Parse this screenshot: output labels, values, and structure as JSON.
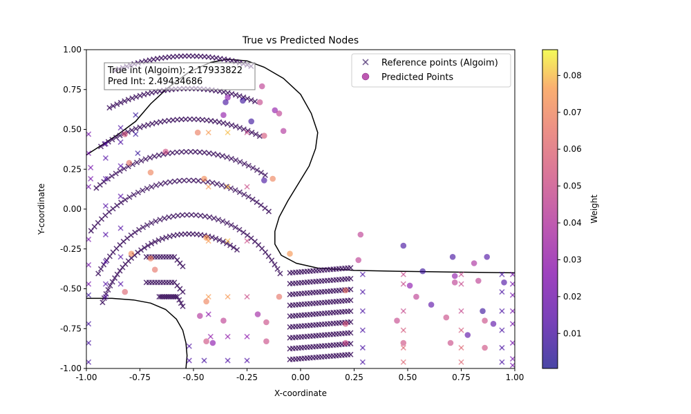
{
  "chart_data": {
    "type": "scatter",
    "title": "True vs Predicted Nodes",
    "xlabel": "X-coordinate",
    "ylabel": "Y-coordinate",
    "xlim": [
      -1.0,
      1.0
    ],
    "ylim": [
      -1.0,
      1.0
    ],
    "x_ticks": [
      "-1.00",
      "-0.75",
      "-0.50",
      "-0.25",
      "0.00",
      "0.25",
      "0.50",
      "0.75",
      "1.00"
    ],
    "y_ticks": [
      "-1.00",
      "-0.75",
      "-0.50",
      "-0.25",
      "0.00",
      "0.25",
      "0.50",
      "0.75",
      "1.00"
    ],
    "grid": false,
    "legend_position": "top-right",
    "annotation": {
      "line1": "True int (Algoim): 2.17933822",
      "line2": "Pred Int: 2.49434686"
    },
    "colorbar": {
      "label": "Weight",
      "colormap": "plasma",
      "range": [
        0.0005,
        0.087
      ],
      "ticks": [
        "0.01",
        "0.02",
        "0.03",
        "0.04",
        "0.05",
        "0.06",
        "0.07",
        "0.08"
      ]
    },
    "series": [
      {
        "name": "Reference points (Algoim)",
        "marker": "x",
        "points": [
          [
            -0.99,
            0.47,
            0.022
          ],
          [
            -0.99,
            0.35,
            0.022
          ],
          [
            -0.99,
            0.14,
            0.022
          ],
          [
            -0.99,
            -0.19,
            0.022
          ],
          [
            -0.99,
            -0.35,
            0.022
          ],
          [
            -0.99,
            -0.47,
            0.022
          ],
          [
            -0.99,
            -0.54,
            0.008
          ],
          [
            -0.99,
            -0.72,
            0.01
          ],
          [
            -0.99,
            -0.84,
            0.01
          ],
          [
            -0.99,
            -0.96,
            0.01
          ],
          [
            -0.98,
            0.26,
            0.022
          ],
          [
            -0.98,
            0.19,
            0.022
          ],
          [
            -0.91,
            0.41,
            0.013
          ],
          [
            -0.91,
            0.32,
            0.013
          ],
          [
            -0.91,
            0.19,
            0.013
          ],
          [
            -0.91,
            0.02,
            0.013
          ],
          [
            -0.91,
            -0.16,
            0.013
          ],
          [
            -0.91,
            -0.33,
            0.013
          ],
          [
            -0.91,
            -0.47,
            0.013
          ],
          [
            -0.91,
            -0.55,
            0.013
          ],
          [
            -0.84,
            0.51,
            0.012
          ],
          [
            -0.84,
            0.42,
            0.012
          ],
          [
            -0.84,
            0.27,
            0.014
          ],
          [
            -0.84,
            0.08,
            0.014
          ],
          [
            -0.84,
            -0.12,
            0.013
          ],
          [
            -0.84,
            -0.3,
            0.013
          ],
          [
            -0.84,
            -0.47,
            0.013
          ],
          [
            -0.77,
            0.59,
            0.006
          ],
          [
            -0.77,
            0.47,
            0.006
          ],
          [
            -0.76,
            0.35,
            0.006
          ],
          [
            -0.52,
            -0.95,
            0.012
          ],
          [
            -0.52,
            -0.86,
            0.012
          ],
          [
            -0.45,
            -0.95,
            0.01
          ],
          [
            -0.42,
            -0.8,
            0.03
          ],
          [
            -0.43,
            -0.66,
            0.028
          ],
          [
            -0.34,
            -0.95,
            0.012
          ],
          [
            -0.34,
            -0.8,
            0.03
          ],
          [
            -0.34,
            -0.55,
            0.075
          ],
          [
            -0.34,
            -0.2,
            0.08
          ],
          [
            -0.34,
            0.14,
            0.08
          ],
          [
            -0.34,
            0.48,
            0.08
          ],
          [
            -0.43,
            0.48,
            0.076
          ],
          [
            -0.43,
            0.14,
            0.076
          ],
          [
            -0.43,
            -0.2,
            0.076
          ],
          [
            -0.43,
            -0.55,
            0.076
          ],
          [
            -0.25,
            -0.95,
            0.012
          ],
          [
            -0.25,
            -0.8,
            0.028
          ],
          [
            -0.25,
            -0.55,
            0.05
          ],
          [
            -0.25,
            -0.2,
            0.05
          ],
          [
            -0.25,
            0.14,
            0.05
          ],
          [
            -0.25,
            0.48,
            0.05
          ],
          [
            0.29,
            -0.52,
            0.011
          ],
          [
            0.29,
            -0.64,
            0.011
          ],
          [
            0.29,
            -0.76,
            0.011
          ],
          [
            0.29,
            -0.87,
            0.011
          ],
          [
            0.29,
            -0.96,
            0.011
          ],
          [
            0.29,
            -0.41,
            0.011
          ],
          [
            0.48,
            -0.47,
            0.048
          ],
          [
            0.48,
            -0.64,
            0.048
          ],
          [
            0.48,
            -0.76,
            0.055
          ],
          [
            0.48,
            -0.87,
            0.06
          ],
          [
            0.48,
            -0.96,
            0.06
          ],
          [
            0.48,
            -0.41,
            0.048
          ],
          [
            0.75,
            -0.47,
            0.048
          ],
          [
            0.75,
            -0.64,
            0.048
          ],
          [
            0.75,
            -0.76,
            0.055
          ],
          [
            0.75,
            -0.87,
            0.06
          ],
          [
            0.75,
            -0.96,
            0.06
          ],
          [
            0.75,
            -0.41,
            0.048
          ],
          [
            0.94,
            -0.41,
            0.011
          ],
          [
            0.94,
            -0.52,
            0.011
          ],
          [
            0.94,
            -0.64,
            0.011
          ],
          [
            0.94,
            -0.76,
            0.011
          ],
          [
            0.94,
            -0.87,
            0.011
          ],
          [
            0.94,
            -0.96,
            0.011
          ],
          [
            0.99,
            -0.41,
            0.022
          ],
          [
            0.99,
            -0.47,
            0.022
          ],
          [
            0.99,
            -0.54,
            0.022
          ],
          [
            0.99,
            -0.64,
            0.022
          ],
          [
            0.99,
            -0.72,
            0.022
          ],
          [
            0.99,
            -0.84,
            0.022
          ],
          [
            0.99,
            -0.94,
            0.022
          ],
          [
            0.99,
            -0.98,
            0.022
          ]
        ]
      },
      {
        "name": "Predicted Points",
        "marker": "o",
        "points": [
          [
            -0.82,
            0.47,
            0.055
          ],
          [
            -0.8,
            0.29,
            0.065
          ],
          [
            -0.7,
            0.23,
            0.07
          ],
          [
            -0.63,
            0.36,
            0.052
          ],
          [
            -0.79,
            -0.28,
            0.072
          ],
          [
            -0.7,
            -0.31,
            0.068
          ],
          [
            -0.68,
            -0.38,
            0.065
          ],
          [
            -0.82,
            -0.52,
            0.06
          ],
          [
            -0.48,
            0.48,
            0.068
          ],
          [
            -0.45,
            0.19,
            0.072
          ],
          [
            -0.44,
            -0.18,
            0.075
          ],
          [
            -0.44,
            -0.58,
            0.07
          ],
          [
            -0.47,
            -0.67,
            0.04
          ],
          [
            -0.44,
            -0.83,
            0.052
          ],
          [
            -0.41,
            -0.84,
            0.028
          ],
          [
            -0.36,
            -0.7,
            0.045
          ],
          [
            -0.36,
            0.59,
            0.03
          ],
          [
            -0.34,
            0.7,
            0.028
          ],
          [
            -0.35,
            0.67,
            0.01
          ],
          [
            -0.27,
            0.68,
            0.008
          ],
          [
            -0.23,
            0.55,
            0.008
          ],
          [
            -0.19,
            0.67,
            0.048
          ],
          [
            -0.17,
            0.46,
            0.055
          ],
          [
            -0.18,
            0.77,
            0.045
          ],
          [
            -0.2,
            -0.66,
            0.035
          ],
          [
            -0.16,
            -0.71,
            0.05
          ],
          [
            -0.16,
            -0.83,
            0.05
          ],
          [
            -0.13,
            0.19,
            0.07
          ],
          [
            -0.12,
            0.62,
            0.03
          ],
          [
            -0.1,
            0.6,
            0.045
          ],
          [
            -0.1,
            -0.55,
            0.065
          ],
          [
            -0.17,
            0.18,
            0.01
          ],
          [
            -0.08,
            0.49,
            0.04
          ],
          [
            -0.05,
            -0.28,
            0.075
          ],
          [
            0.21,
            -0.51,
            0.065
          ],
          [
            0.21,
            -0.72,
            0.055
          ],
          [
            0.21,
            -0.84,
            0.05
          ],
          [
            0.28,
            -0.16,
            0.045
          ],
          [
            0.27,
            -0.32,
            0.045
          ],
          [
            0.48,
            -0.23,
            0.01
          ],
          [
            0.51,
            -0.48,
            0.028
          ],
          [
            0.54,
            -0.55,
            0.045
          ],
          [
            0.57,
            -0.39,
            0.008
          ],
          [
            0.61,
            -0.6,
            0.015
          ],
          [
            0.45,
            -0.7,
            0.048
          ],
          [
            0.48,
            -0.84,
            0.052
          ],
          [
            0.68,
            -0.68,
            0.05
          ],
          [
            0.7,
            -0.84,
            0.05
          ],
          [
            0.71,
            -0.3,
            0.01
          ],
          [
            0.72,
            -0.42,
            0.03
          ],
          [
            0.72,
            -0.46,
            0.045
          ],
          [
            0.81,
            -0.34,
            0.038
          ],
          [
            0.83,
            -0.45,
            0.045
          ],
          [
            0.85,
            -0.64,
            0.008
          ],
          [
            0.86,
            -0.7,
            0.05
          ],
          [
            0.87,
            -0.3,
            0.012
          ],
          [
            0.9,
            -0.72,
            0.015
          ],
          [
            0.95,
            -0.46,
            0.012
          ],
          [
            0.86,
            -0.87,
            0.052
          ],
          [
            0.78,
            -0.79,
            0.015
          ]
        ]
      }
    ],
    "reference_arcs": [
      {
        "cx": -0.52,
        "cy": -0.9,
        "r": 0.62,
        "from": 60,
        "to": 155,
        "n": 42
      },
      {
        "cx": -0.52,
        "cy": -0.9,
        "r": 0.72,
        "from": 35,
        "to": 145,
        "n": 48
      },
      {
        "cx": -0.52,
        "cy": -0.9,
        "r": 0.9,
        "from": 55,
        "to": 135,
        "n": 42
      },
      {
        "cx": -0.52,
        "cy": -0.9,
        "r": 1.05,
        "from": 62,
        "to": 125,
        "n": 40
      },
      {
        "cx": -0.52,
        "cy": -0.9,
        "r": 1.22,
        "from": 68,
        "to": 118,
        "n": 40
      },
      {
        "cx": -0.52,
        "cy": -0.9,
        "r": 1.38,
        "from": 72,
        "to": 112,
        "n": 38
      },
      {
        "cx": -0.52,
        "cy": -0.9,
        "r": 1.55,
        "from": 75,
        "to": 108,
        "n": 36
      }
    ]
  }
}
